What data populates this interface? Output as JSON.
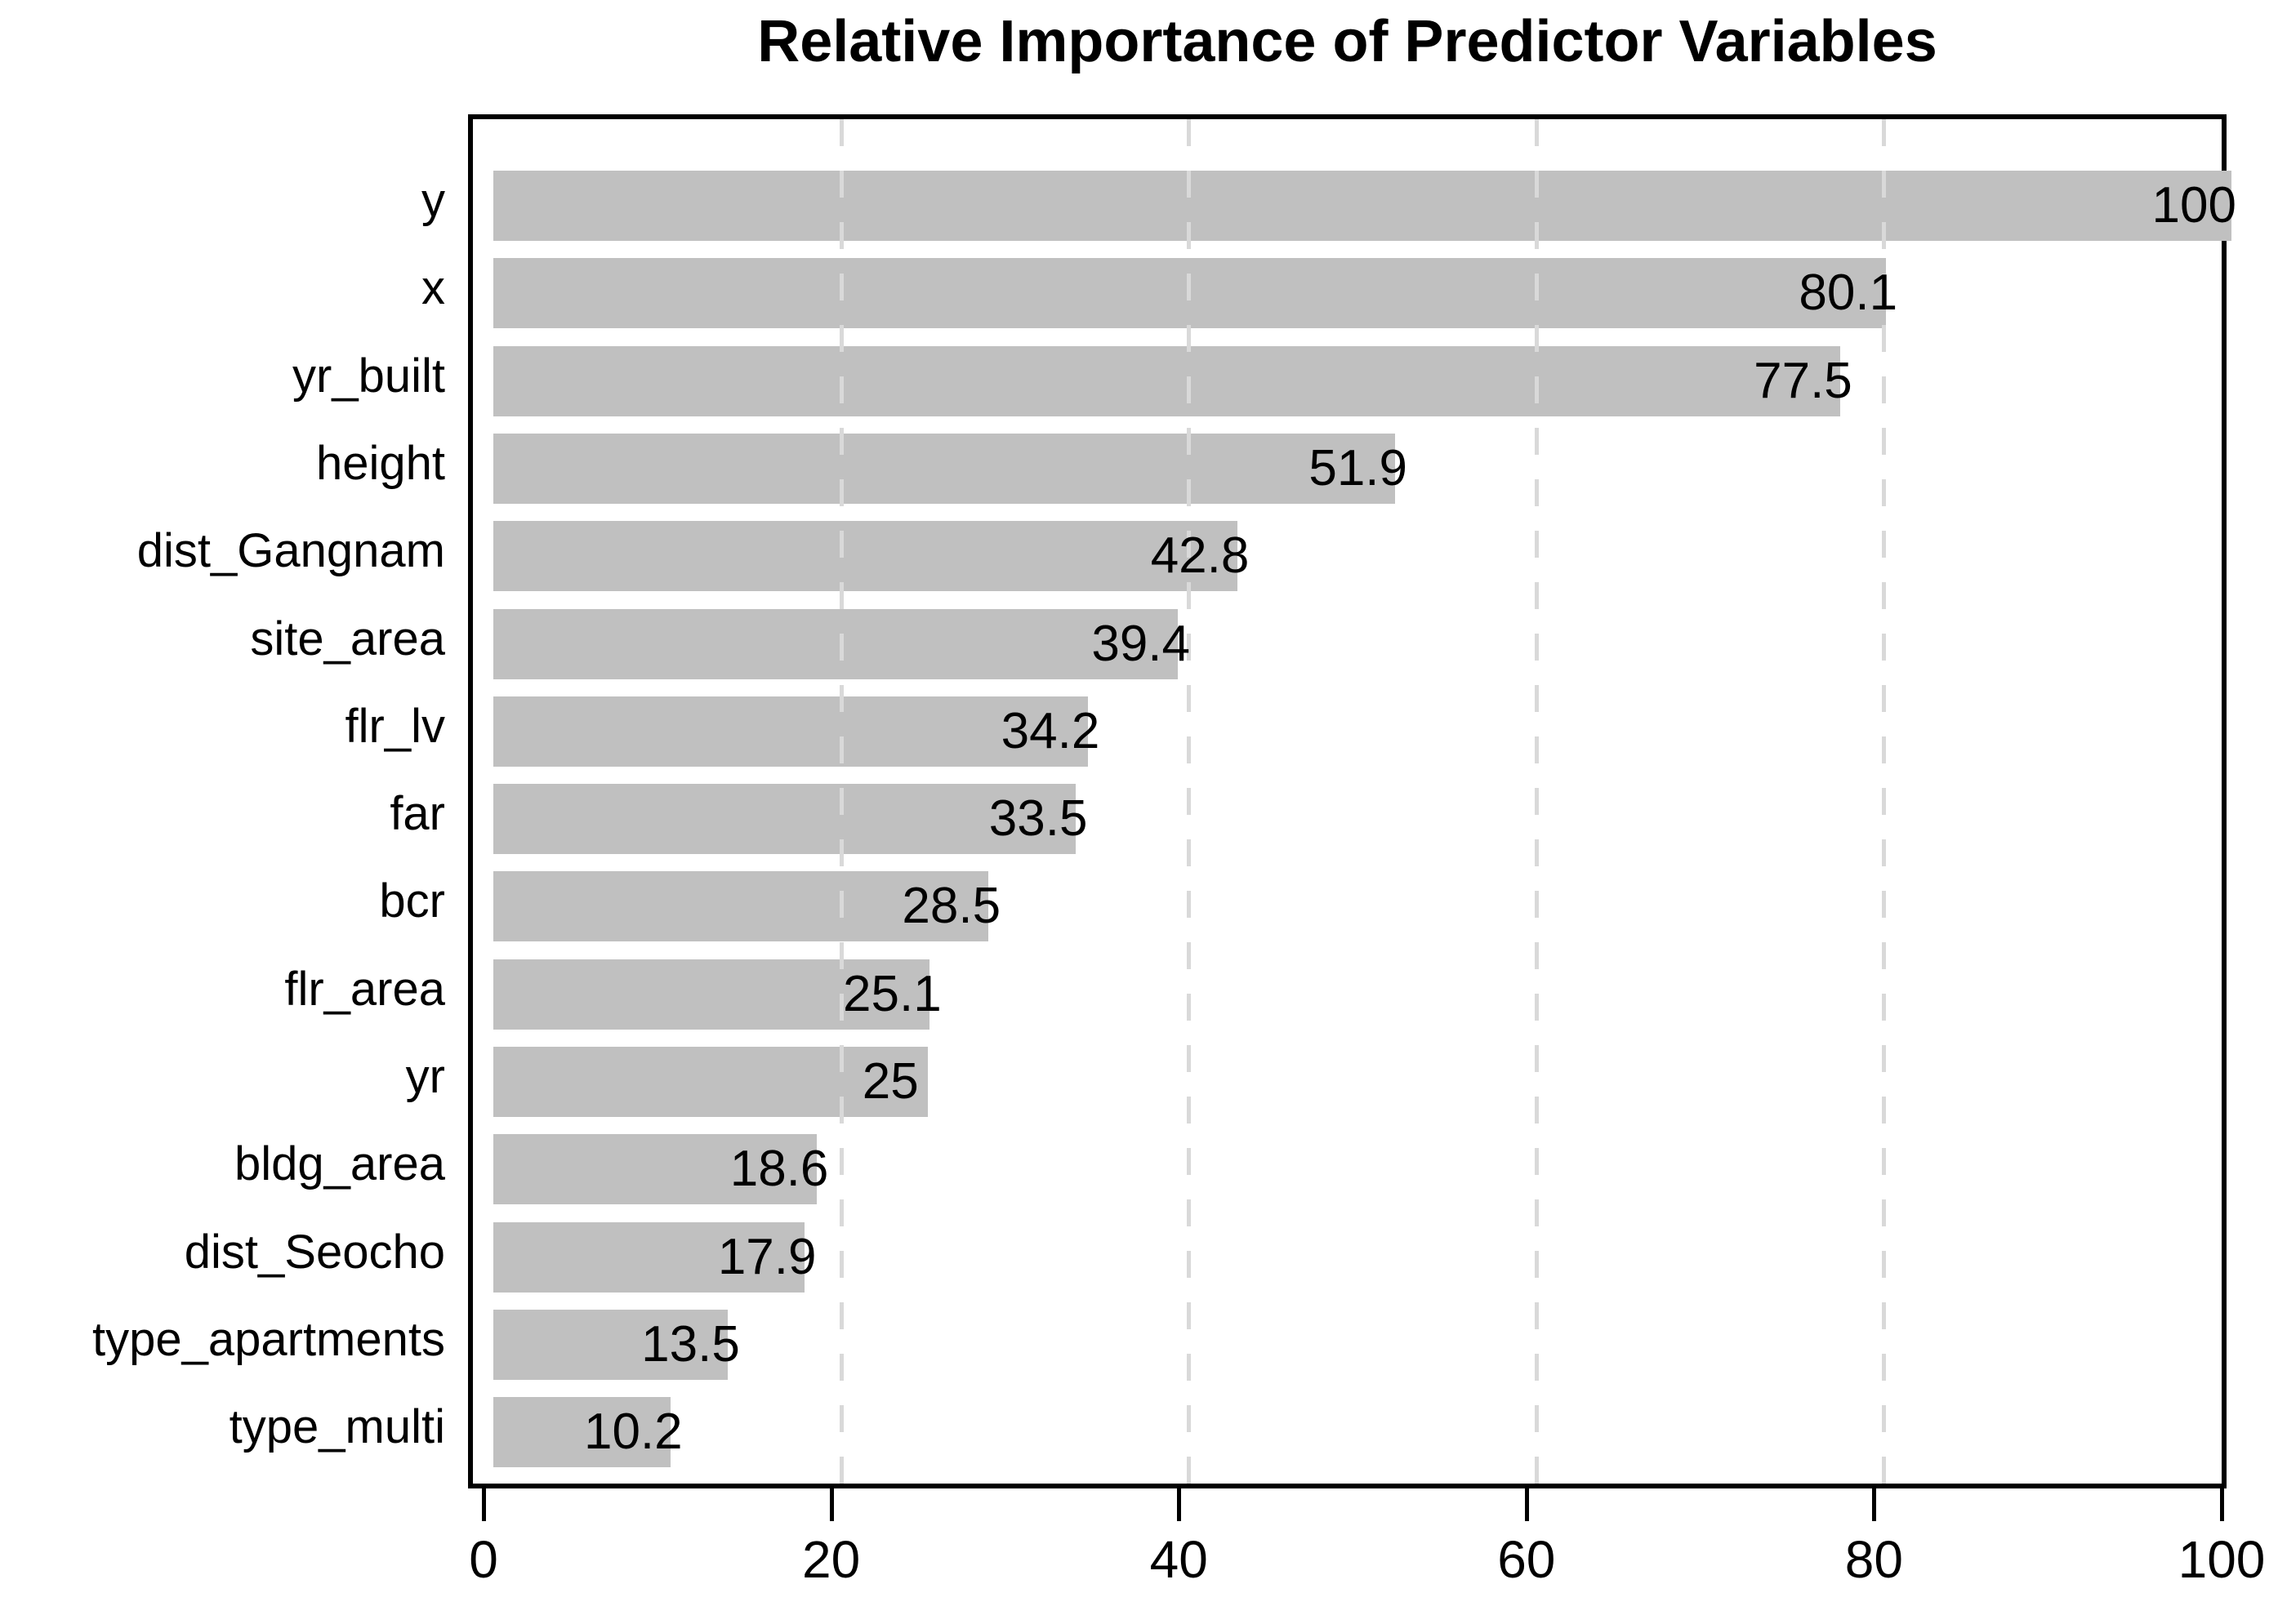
{
  "chart_data": {
    "type": "bar",
    "orientation": "horizontal",
    "title": "Relative Importance of Predictor Variables",
    "xlabel": "",
    "ylabel": "",
    "categories": [
      "y",
      "x",
      "yr_built",
      "height",
      "dist_Gangnam",
      "site_area",
      "flr_lv",
      "far",
      "bcr",
      "flr_area",
      "yr",
      "bldg_area",
      "dist_Seocho",
      "type_apartments",
      "type_multi"
    ],
    "values": [
      100,
      80.1,
      77.5,
      51.9,
      42.8,
      39.4,
      34.2,
      33.5,
      28.5,
      25.1,
      25,
      18.6,
      17.9,
      13.5,
      10.2
    ],
    "value_labels": [
      "100",
      "80.1",
      "77.5",
      "51.9",
      "42.8",
      "39.4",
      "34.2",
      "33.5",
      "28.5",
      "25.1",
      "25",
      "18.6",
      "17.9",
      "13.5",
      "10.2"
    ],
    "xlim": [
      0,
      100
    ],
    "x_ticks": [
      0,
      20,
      40,
      60,
      80,
      100
    ],
    "gridlines": [
      20,
      40,
      60,
      80
    ],
    "grid_style": "dashed",
    "grid_on": true,
    "legend": "none",
    "bar_color": "#c0c0c0",
    "grid_color": "#d9d9d9",
    "axis_color": "#000000",
    "text_color": "#000000",
    "background_color": "#ffffff"
  }
}
